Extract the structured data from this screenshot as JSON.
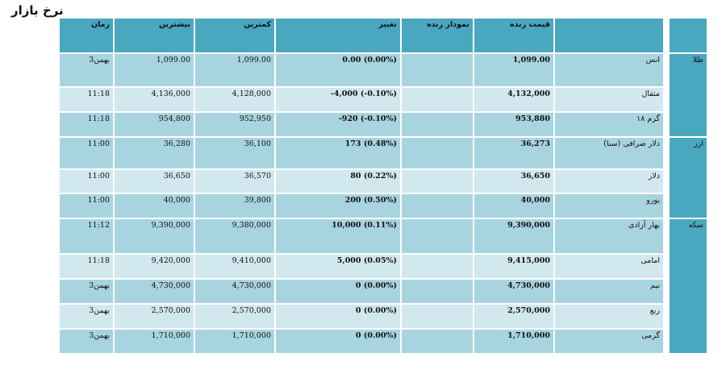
{
  "page": {
    "title": "نرخ بازار"
  },
  "headers": {
    "time": "زمان",
    "max": "بیشترین",
    "min": "کمترین",
    "change": "تغییر",
    "chart": "نمودار زنده",
    "price": "قیمت زنده",
    "name": "",
    "category": ""
  },
  "groups": [
    {
      "category": "طلا",
      "rows": [
        {
          "time": "3بهمن",
          "max": "1,099.00",
          "min": "1,099.00",
          "change": "0.00 (0.00%)",
          "price": "1,099.00",
          "name": "انس"
        },
        {
          "time": "11:18",
          "max": "4,136,000",
          "min": "4,128,000",
          "change": "-4,000 (-0.10%)",
          "price": "4,132,000",
          "name": "مثقال"
        },
        {
          "time": "11:18",
          "max": "954,800",
          "min": "952,950",
          "change": "-920 (-0.10%)",
          "price": "953,880",
          "name": "گرم ۱۸"
        }
      ]
    },
    {
      "category": "ارز",
      "rows": [
        {
          "time": "11:00",
          "max": "36,280",
          "min": "36,100",
          "change": "173 (0.48%)",
          "price": "36,273",
          "name": "دلار صرافی (سنا)"
        },
        {
          "time": "11:00",
          "max": "36,650",
          "min": "36,570",
          "change": "80 (0.22%)",
          "price": "36,650",
          "name": "دلار"
        },
        {
          "time": "11:00",
          "max": "40,000",
          "min": "39,800",
          "change": "200 (0.50%)",
          "price": "40,000",
          "name": "یورو"
        }
      ]
    },
    {
      "category": "سکه",
      "rows": [
        {
          "time": "11:12",
          "max": "9,390,000",
          "min": "9,380,000",
          "change": "10,000 (0.11%)",
          "price": "9,390,000",
          "name": "بهار آزادی"
        },
        {
          "time": "11:18",
          "max": "9,420,000",
          "min": "9,410,000",
          "change": "5,000 (0.05%)",
          "price": "9,415,000",
          "name": "امامی"
        },
        {
          "time": "3بهمن",
          "max": "4,730,000",
          "min": "4,730,000",
          "change": "0 (0.00%)",
          "price": "4,730,000",
          "name": "نیم"
        },
        {
          "time": "3بهمن",
          "max": "2,570,000",
          "min": "2,570,000",
          "change": "0 (0.00%)",
          "price": "2,570,000",
          "name": "ربع"
        },
        {
          "time": "3بهمن",
          "max": "1,710,000",
          "min": "1,710,000",
          "change": "0 (0.00%)",
          "price": "1,710,000",
          "name": "گرمی"
        }
      ]
    }
  ]
}
